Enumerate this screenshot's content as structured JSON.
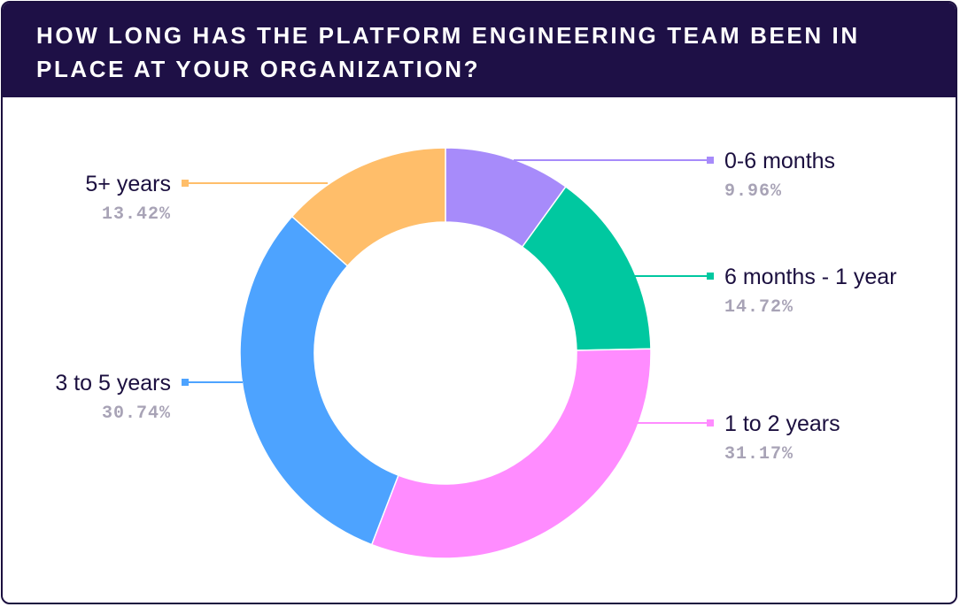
{
  "header": {
    "title": "HOW LONG HAS THE PLATFORM ENGINEERING TEAM BEEN IN PLACE AT YOUR ORGANIZATION?"
  },
  "colors": {
    "header_bg": "#1e1046",
    "border": "#1b0f3f"
  },
  "chart_data": {
    "type": "pie",
    "variant": "donut",
    "title": "HOW LONG HAS THE PLATFORM ENGINEERING TEAM BEEN IN PLACE AT YOUR ORGANIZATION?",
    "categories": [
      "0-6 months",
      "6 months - 1 year",
      "1 to 2 years",
      "3 to 5 years",
      "5+ years"
    ],
    "values": [
      9.96,
      14.72,
      31.17,
      30.74,
      13.42
    ],
    "value_labels": [
      "9.96%",
      "14.72%",
      "31.17%",
      "30.74%",
      "13.42%"
    ],
    "colors": [
      "#a78bfa",
      "#00c8a0",
      "#ff8cff",
      "#4da3ff",
      "#ffbe6a"
    ],
    "unit": "%"
  }
}
